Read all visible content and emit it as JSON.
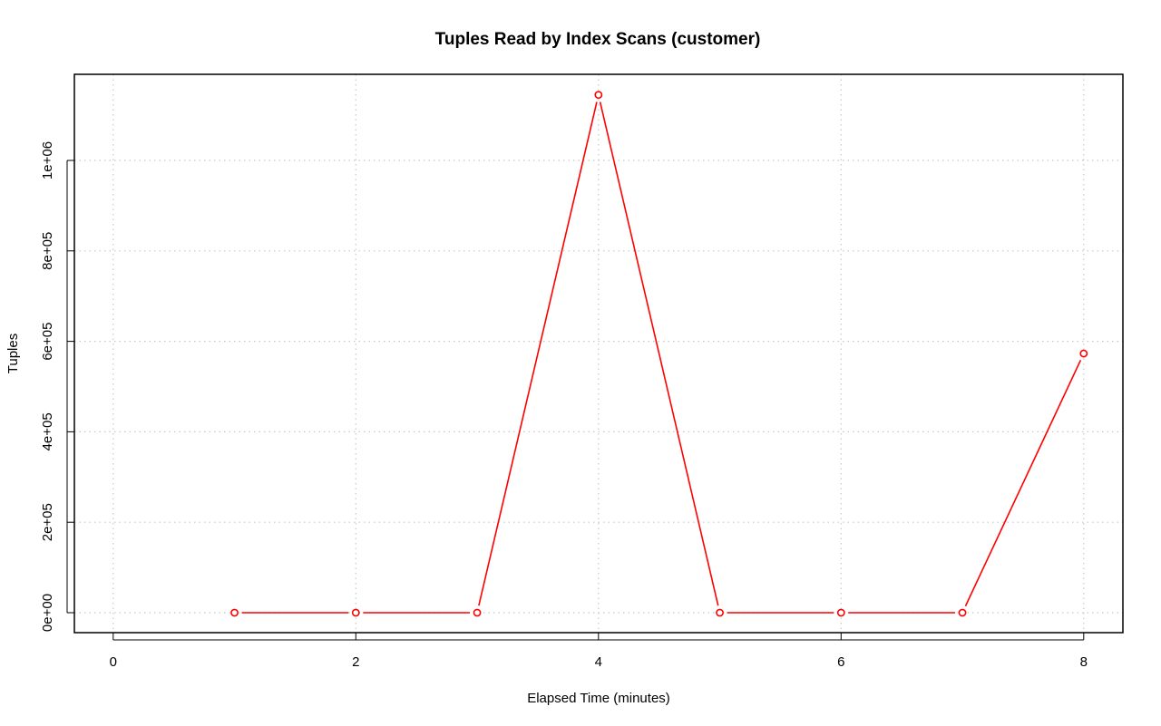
{
  "chart_data": {
    "type": "line",
    "title": "Tuples Read by Index Scans (customer)",
    "xlabel": "Elapsed Time (minutes)",
    "ylabel": "Tuples",
    "xlim": [
      0,
      8
    ],
    "ylim": [
      0,
      1150000
    ],
    "x_ticks": [
      0,
      2,
      4,
      6,
      8
    ],
    "x_tick_labels": [
      "0",
      "2",
      "4",
      "6",
      "8"
    ],
    "y_ticks": [
      0,
      200000,
      400000,
      600000,
      800000,
      1000000
    ],
    "y_tick_labels": [
      "0e+00",
      "2e+05",
      "4e+05",
      "6e+05",
      "8e+05",
      "1e+06"
    ],
    "grid": true,
    "series": [
      {
        "color": "#ff0000",
        "marker": "open-circle",
        "x": [
          1,
          2,
          3,
          4,
          5,
          6,
          7,
          8
        ],
        "y": [
          0,
          0,
          0,
          1145000,
          0,
          0,
          0,
          573000
        ]
      }
    ]
  }
}
